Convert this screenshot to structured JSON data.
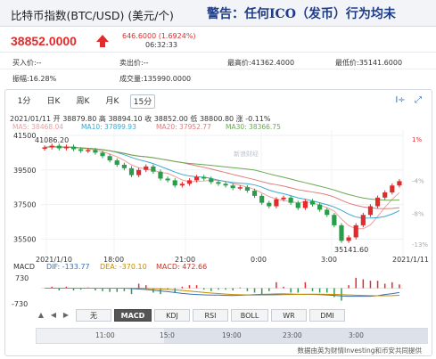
{
  "header": {
    "title": "比特币指数(BTC/USD) (美元/个)",
    "warning": "警告：任何ICO（发币）行为均未"
  },
  "quote": {
    "price": "38852.0000",
    "change": "646.6000 (1.6924%)",
    "time": "06:32:33"
  },
  "stats": {
    "row1": [
      {
        "label": "买入价:--"
      },
      {
        "label": "卖出价:--"
      },
      {
        "label": "最高价:41362.4000"
      },
      {
        "label": "最低价:35141.6000"
      }
    ],
    "row2": [
      {
        "label": "振幅:16.28%"
      },
      {
        "label": "成交量:135990.0000"
      }
    ]
  },
  "tabs": [
    {
      "label": "1分"
    },
    {
      "label": "日K"
    },
    {
      "label": "周K"
    },
    {
      "label": "月K"
    },
    {
      "label": "15分"
    }
  ],
  "tools": [
    {
      "icon": "crosshair-icon",
      "label": "I÷"
    },
    {
      "icon": "expand-icon",
      "label": "⤢"
    }
  ],
  "ohlc": "2021/01/11 开 38879.80 高 38894.10 收 38852.00 低 38800.80 涨 -0.11%",
  "ma": [
    {
      "label": "MA5: 38468.04",
      "color": "#f39c9c"
    },
    {
      "label": "MA10: 37899.93",
      "color": "#3aa8d0"
    },
    {
      "label": "MA20: 37952.77",
      "color": "#e07b7b"
    },
    {
      "label": "MA30: 38366.75",
      "color": "#6aa84f"
    }
  ],
  "chart_data": {
    "type": "line",
    "title": "",
    "xlabel": "",
    "ylabel": "",
    "yticks": [
      "41500",
      "39500",
      "37500",
      "35500"
    ],
    "pct_ticks": [
      "1%",
      "-4%",
      "-8%",
      "-13%"
    ],
    "xticks": [
      "2021/1/10",
      "18:00",
      "21:00",
      "0:00",
      "3:00",
      "2021/1/11"
    ],
    "annotations": {
      "high": "41086.20",
      "low": "35141.60"
    },
    "candles_close": [
      40800,
      40900,
      40750,
      40850,
      40700,
      40600,
      40650,
      40500,
      40300,
      40050,
      39800,
      39600,
      39200,
      39500,
      39700,
      39400,
      39000,
      38900,
      38600,
      38700,
      38900,
      39100,
      39000,
      38800,
      38700,
      38600,
      38450,
      38500,
      38300,
      38000,
      37600,
      37400,
      37800,
      37900,
      37600,
      37300,
      37700,
      37500,
      37200,
      36900,
      36300,
      35400,
      35600,
      36300,
      36900,
      37400,
      37900,
      38200,
      38600,
      38852
    ],
    "watermark": "新浪财经"
  },
  "macd": {
    "label": "MACD",
    "dif": "DIF: -133.77",
    "dea": "DEA: -370.10",
    "macd": "MACD: 472.66",
    "axis_top": "730",
    "axis_bottom": "-730"
  },
  "indicator_tabs": [
    {
      "label": "无"
    },
    {
      "label": "MACD"
    },
    {
      "label": "KDJ"
    },
    {
      "label": "RSI"
    },
    {
      "label": "BOLL"
    },
    {
      "label": "WR"
    },
    {
      "label": "DMI"
    }
  ],
  "navigator": {
    "labels": [
      "11:00",
      "15:0",
      "19:00",
      "23:00",
      "3:00"
    ]
  },
  "footer": "数据由英为财情Investing和币安共同提供",
  "colors": {
    "up": "#e32b2b",
    "down": "#2a9d4b",
    "brand": "#1f3c88"
  }
}
